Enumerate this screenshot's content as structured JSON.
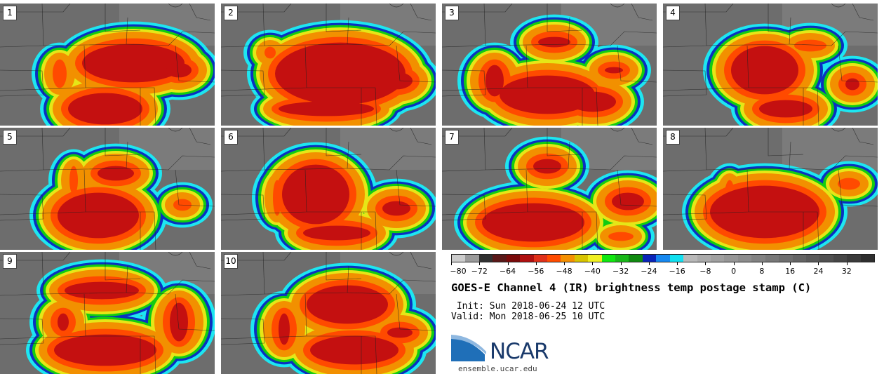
{
  "panels": [
    {
      "label": "1"
    },
    {
      "label": "2"
    },
    {
      "label": "3"
    },
    {
      "label": "4"
    },
    {
      "label": "5"
    },
    {
      "label": "6"
    },
    {
      "label": "7"
    },
    {
      "label": "8"
    },
    {
      "label": "9"
    },
    {
      "label": "10"
    }
  ],
  "colorbar": {
    "tick_labels": [
      "−80",
      "−72",
      "−64",
      "−56",
      "−48",
      "−40",
      "−32",
      "−24",
      "−16",
      "−8",
      "0",
      "8",
      "16",
      "24",
      "32"
    ],
    "min": -80,
    "max": 40,
    "colors": [
      "#cccccc",
      "#9a9a9a",
      "#303030",
      "#5a1818",
      "#7a0a0a",
      "#b01010",
      "#e0301a",
      "#ff4c00",
      "#f59000",
      "#d8c400",
      "#f0f020",
      "#10e810",
      "#18b818",
      "#108a10",
      "#0a24b8",
      "#1688f0",
      "#10e0f0",
      "#b8b8b8",
      "#aaaaaa",
      "#a0a0a0",
      "#969696",
      "#8c8c8c",
      "#828282",
      "#787878",
      "#6e6e6e",
      "#646464",
      "#5a5a5a",
      "#505050",
      "#464646",
      "#3a3a3a",
      "#2e2e2e"
    ]
  },
  "title": "GOES-E Channel 4 (IR) brightness temp postage stamp (C)",
  "init": " Init: Sun 2018-06-24 12 UTC",
  "valid": "Valid: Mon 2018-06-25 10 UTC",
  "logo": {
    "wordmark": "NCAR",
    "url_text": "ensemble.ucar.edu",
    "color": "#1a3a6b"
  }
}
